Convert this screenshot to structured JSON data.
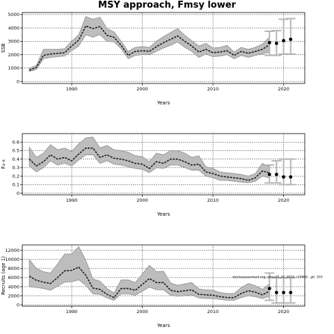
{
  "title": "MSY approach, Fmsy lower",
  "chart_data": [
    {
      "type": "area",
      "name": "ssb-panel",
      "ylabel": "SSB",
      "xlabel": "Years",
      "xlim": [
        1983,
        2023
      ],
      "ylim": [
        -150,
        5150
      ],
      "yticks": [
        0,
        1000,
        2000,
        3000,
        4000,
        5000
      ],
      "xticks": [
        1990,
        2000,
        2010,
        2020
      ],
      "grid": true,
      "years": [
        1984,
        1985,
        1986,
        1987,
        1988,
        1989,
        1990,
        1991,
        1992,
        1993,
        1994,
        1995,
        1996,
        1997,
        1998,
        1999,
        2000,
        2001,
        2002,
        2003,
        2004,
        2005,
        2006,
        2007,
        2008,
        2009,
        2010,
        2011,
        2012,
        2013,
        2014,
        2015,
        2016,
        2017,
        2018
      ],
      "estimate": [
        850,
        1050,
        1950,
        2050,
        2100,
        2150,
        2650,
        3100,
        4150,
        3950,
        4100,
        3450,
        3300,
        2700,
        1950,
        2250,
        2300,
        2250,
        2600,
        2900,
        3150,
        3400,
        3000,
        2650,
        2200,
        2400,
        2150,
        2200,
        2300,
        1950,
        2250,
        2100,
        2250,
        2400,
        2750
      ],
      "lower": [
        750,
        900,
        1700,
        1800,
        1850,
        1900,
        2300,
        2650,
        3500,
        3300,
        3500,
        3000,
        2950,
        2450,
        1700,
        1950,
        2000,
        2000,
        2250,
        2500,
        2700,
        2950,
        2550,
        2250,
        1800,
        2050,
        1850,
        1900,
        2000,
        1700,
        1950,
        1800,
        1950,
        2050,
        2200
      ],
      "upper": [
        1000,
        1200,
        2400,
        2400,
        2400,
        2450,
        3000,
        3500,
        4850,
        4650,
        4800,
        3950,
        3700,
        3000,
        2250,
        2550,
        2600,
        2550,
        3000,
        3350,
        3650,
        3950,
        3450,
        3050,
        2650,
        2850,
        2500,
        2550,
        2700,
        2200,
        2550,
        2400,
        2550,
        2800,
        3300
      ],
      "forecast": [
        {
          "year": 2018,
          "value": 2900,
          "low": 1950,
          "high": 3750
        },
        {
          "year": 2019,
          "value": 2850,
          "low": 1950,
          "high": 3800
        },
        {
          "year": 2020,
          "value": 3050,
          "low": 2050,
          "high": 4650
        },
        {
          "year": 2021,
          "value": 3150,
          "low": 2050,
          "high": 4700
        }
      ]
    },
    {
      "type": "area",
      "name": "f-panel",
      "ylabel": "F₄₋₈",
      "xlabel": "Years",
      "xlim": [
        1983,
        2023
      ],
      "ylim": [
        -0.02,
        0.7
      ],
      "yticks": [
        0.0,
        0.1,
        0.2,
        0.3,
        0.4,
        0.5,
        0.6
      ],
      "xticks": [
        1990,
        2000,
        2010,
        2020
      ],
      "grid": true,
      "years": [
        1984,
        1985,
        1986,
        1987,
        1988,
        1989,
        1990,
        1991,
        1992,
        1993,
        1994,
        1995,
        1996,
        1997,
        1998,
        1999,
        2000,
        2001,
        2002,
        2003,
        2004,
        2005,
        2006,
        2007,
        2008,
        2009,
        2010,
        2011,
        2012,
        2013,
        2014,
        2015,
        2016,
        2017,
        2018
      ],
      "estimate": [
        0.4,
        0.32,
        0.37,
        0.45,
        0.4,
        0.42,
        0.38,
        0.46,
        0.53,
        0.53,
        0.42,
        0.45,
        0.41,
        0.4,
        0.38,
        0.35,
        0.34,
        0.29,
        0.37,
        0.35,
        0.4,
        0.4,
        0.37,
        0.33,
        0.34,
        0.25,
        0.23,
        0.2,
        0.19,
        0.18,
        0.17,
        0.15,
        0.18,
        0.26,
        0.24
      ],
      "lower": [
        0.32,
        0.25,
        0.3,
        0.38,
        0.33,
        0.35,
        0.32,
        0.39,
        0.45,
        0.45,
        0.35,
        0.38,
        0.34,
        0.33,
        0.31,
        0.29,
        0.28,
        0.24,
        0.3,
        0.29,
        0.33,
        0.33,
        0.3,
        0.27,
        0.27,
        0.2,
        0.18,
        0.15,
        0.15,
        0.14,
        0.13,
        0.12,
        0.14,
        0.2,
        0.18
      ],
      "upper": [
        0.54,
        0.42,
        0.47,
        0.57,
        0.51,
        0.53,
        0.49,
        0.58,
        0.65,
        0.66,
        0.53,
        0.56,
        0.51,
        0.5,
        0.48,
        0.44,
        0.43,
        0.37,
        0.47,
        0.45,
        0.5,
        0.5,
        0.47,
        0.42,
        0.44,
        0.31,
        0.29,
        0.25,
        0.24,
        0.23,
        0.22,
        0.2,
        0.23,
        0.35,
        0.31
      ],
      "forecast": [
        {
          "year": 2018,
          "value": 0.22,
          "low": 0.12,
          "high": 0.33
        },
        {
          "year": 2019,
          "value": 0.22,
          "low": 0.12,
          "high": 0.38
        },
        {
          "year": 2020,
          "value": 0.19,
          "low": 0.1,
          "high": 0.4
        },
        {
          "year": 2021,
          "value": 0.19,
          "low": 0.1,
          "high": 0.4
        }
      ]
    },
    {
      "type": "area",
      "name": "recruits-panel",
      "ylabel": "Recruits (age 1)",
      "xlabel": "Years",
      "xlim": [
        1983,
        2023
      ],
      "ylim": [
        -300,
        13200
      ],
      "yticks": [
        0,
        2000,
        4000,
        6000,
        8000,
        10000,
        12000
      ],
      "xticks": [
        1990,
        2000,
        2010,
        2020
      ],
      "grid": true,
      "years": [
        1984,
        1985,
        1986,
        1987,
        1988,
        1989,
        1990,
        1991,
        1992,
        1993,
        1994,
        1995,
        1996,
        1997,
        1998,
        1999,
        2000,
        2001,
        2002,
        2003,
        2004,
        2005,
        2006,
        2007,
        2008,
        2009,
        2010,
        2011,
        2012,
        2013,
        2014,
        2015,
        2016,
        2017,
        2018
      ],
      "estimate": [
        6300,
        5400,
        5000,
        4700,
        6000,
        7500,
        7600,
        8300,
        6500,
        3700,
        3400,
        2300,
        1600,
        3600,
        3600,
        3200,
        4500,
        5800,
        4900,
        4900,
        3200,
        2900,
        3100,
        3300,
        2300,
        2200,
        2100,
        1800,
        1600,
        1600,
        2500,
        3100,
        2800,
        2200,
        3000
      ],
      "lower": [
        4000,
        3800,
        3600,
        3200,
        4100,
        5000,
        5100,
        5500,
        4300,
        2400,
        2300,
        1500,
        1000,
        2400,
        2400,
        2100,
        3000,
        3900,
        3300,
        3300,
        2100,
        1900,
        2000,
        2200,
        1500,
        1400,
        1400,
        1200,
        1000,
        1000,
        1600,
        2000,
        1800,
        1400,
        1900
      ],
      "upper": [
        10000,
        8000,
        7300,
        7000,
        9000,
        11200,
        11200,
        12800,
        9800,
        5700,
        5200,
        3600,
        2600,
        5500,
        5500,
        4900,
        6800,
        8700,
        7300,
        7400,
        4800,
        4300,
        4600,
        4900,
        3500,
        3300,
        3200,
        2700,
        2500,
        2500,
        3800,
        4700,
        4200,
        3400,
        4600
      ],
      "forecast": [
        {
          "year": 2018,
          "value": 3600,
          "low": 1000,
          "high": 7000
        },
        {
          "year": 2019,
          "value": 2700,
          "low": 400,
          "high": 6000
        },
        {
          "year": 2020,
          "value": 2700,
          "low": 400,
          "high": 6000
        },
        {
          "year": 2021,
          "value": 2700,
          "low": 400,
          "high": 6000
        }
      ],
      "annotation": "stockassessment.org, wbss20_24_2019, r10968 , git: 503"
    }
  ]
}
